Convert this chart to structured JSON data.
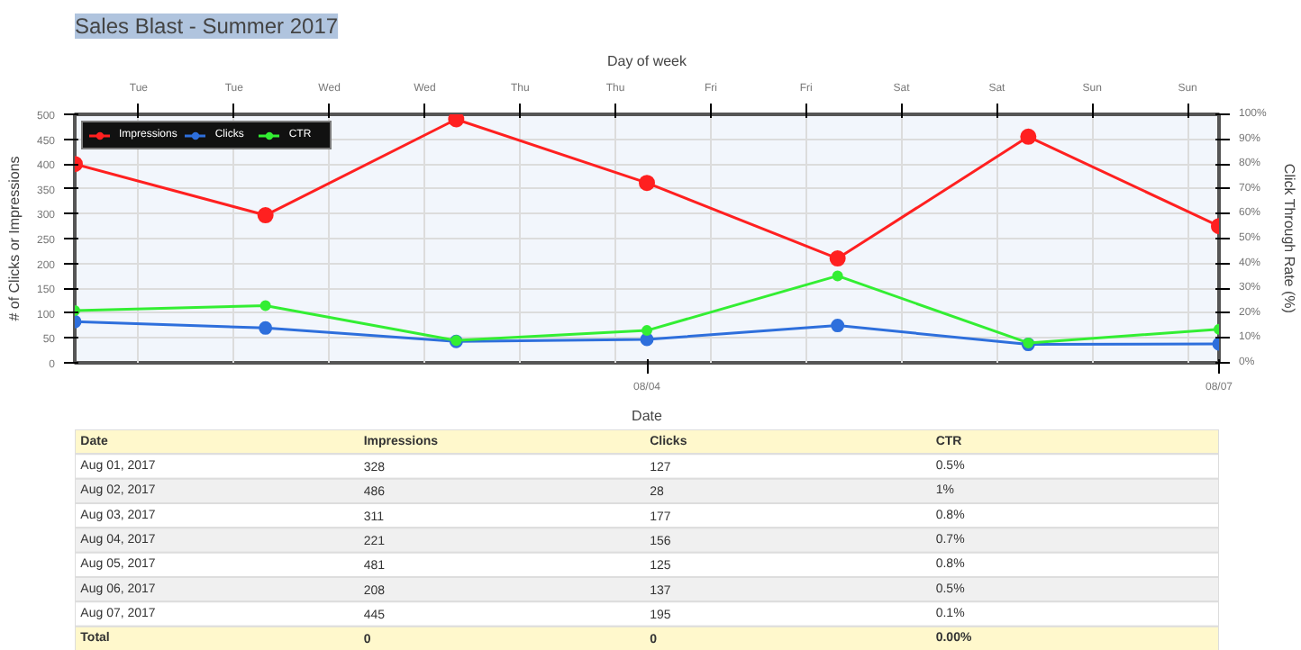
{
  "chart_data": {
    "type": "line",
    "title": "Sales Blast - Summer 2017",
    "xlabel": "Date",
    "x2label": "Day of week",
    "ylabel": "# of Clicks or Impressions",
    "y2label": "Click Through Rate (%)",
    "x": [
      "2017-08-01",
      "2017-08-02",
      "2017-08-03",
      "2017-08-04",
      "2017-08-05",
      "2017-08-06",
      "2017-08-07"
    ],
    "series": [
      {
        "name": "Impressions",
        "color": "#ff2020",
        "values": [
          400,
          297,
          490,
          362,
          210,
          455,
          275
        ]
      },
      {
        "name": "Clicks",
        "color": "#2e6fdc",
        "values": [
          83,
          70,
          43,
          47,
          75,
          37,
          38
        ]
      },
      {
        "name": "CTR",
        "color": "#33ee33",
        "axis": "y2",
        "values": [
          21,
          23,
          9,
          13,
          35,
          8,
          13.5
        ]
      }
    ],
    "xlim": [
      "2017-08-01",
      "2017-08-07"
    ],
    "xticks": [
      {
        "value": "2017-08-04",
        "label": "08/04"
      },
      {
        "value": "2017-08-07",
        "label": "08/07"
      }
    ],
    "ylim": [
      0,
      500
    ],
    "yticks": [
      0,
      50,
      100,
      150,
      200,
      250,
      300,
      350,
      400,
      450,
      500
    ],
    "y2lim": [
      0,
      100
    ],
    "y2ticks": [
      {
        "value": 0,
        "label": "0%"
      },
      {
        "value": 10,
        "label": "10%"
      },
      {
        "value": 20,
        "label": "20%"
      },
      {
        "value": 30,
        "label": "30%"
      },
      {
        "value": 40,
        "label": "40%"
      },
      {
        "value": 50,
        "label": "50%"
      },
      {
        "value": 60,
        "label": "60%"
      },
      {
        "value": 70,
        "label": "70%"
      },
      {
        "value": 80,
        "label": "80%"
      },
      {
        "value": 90,
        "label": "90%"
      },
      {
        "value": 100,
        "label": "100%"
      }
    ],
    "grid": true,
    "legend": "top left",
    "marker": "circle",
    "line_style": "solid",
    "annotations": [
      "Tue",
      "Tue",
      "Wed",
      "Wed",
      "Thu",
      "Thu",
      "Fri",
      "Fri",
      "Sat",
      "Sat",
      "Sun",
      "Sun",
      "Date",
      "Impressions",
      "Clicks",
      "CTR",
      "Aug 01, 2017",
      "328",
      "127",
      "0.5%",
      "Aug 02, 2017",
      "486",
      "28",
      "1%",
      "Aug 03, 2017",
      "311",
      "177",
      "0.8%",
      "Aug 04, 2017",
      "221",
      "156",
      "0.7%",
      "Aug 05, 2017",
      "481",
      "125",
      "0.8%",
      "Aug 06, 2017",
      "208",
      "137",
      "0.5%",
      "Aug 07, 2017",
      "445",
      "195",
      "0.1%",
      "Total",
      "0",
      "0",
      "0.00%"
    ]
  }
}
